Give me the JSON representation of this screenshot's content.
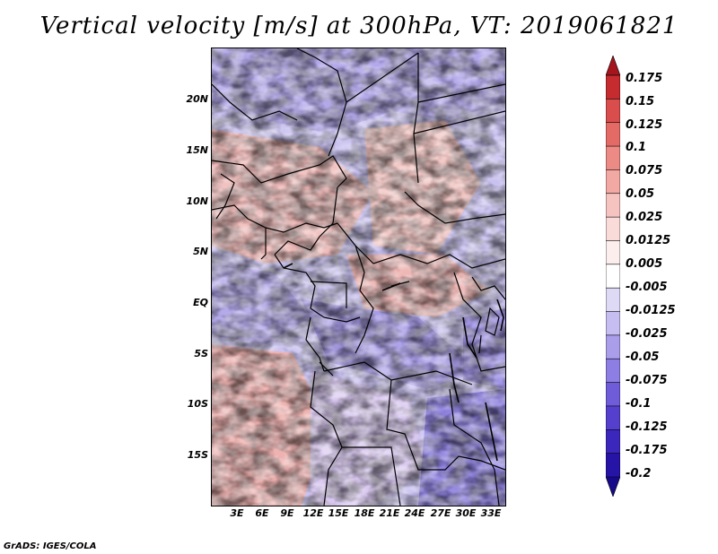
{
  "title": "Vertical velocity [m/s] at 300hPa, VT: 2019061821",
  "credit": "GrADS: IGES/COLA",
  "map": {
    "lat_labels": [
      "20N",
      "15N",
      "10N",
      "5N",
      "EQ",
      "5S",
      "10S",
      "15S"
    ],
    "lon_labels": [
      "3E",
      "6E",
      "9E",
      "12E",
      "15E",
      "18E",
      "21E",
      "24E",
      "27E",
      "30E",
      "33E"
    ]
  },
  "colorbar": {
    "labels": [
      "0.175",
      "0.15",
      "0.125",
      "0.1",
      "0.075",
      "0.05",
      "0.025",
      "0.0125",
      "0.005",
      "-0.005",
      "-0.0125",
      "-0.025",
      "-0.05",
      "-0.075",
      "-0.1",
      "-0.125",
      "-0.175",
      "-0.2"
    ],
    "colors": [
      "#a4151d",
      "#c52b2f",
      "#d94d4d",
      "#e46a66",
      "#ec8a85",
      "#f2a8a3",
      "#f6c4c0",
      "#f9dcda",
      "#fbeeec",
      "#ffffff",
      "#ded9f5",
      "#c6bdf0",
      "#aa9de9",
      "#8c7ee2",
      "#6f5cd9",
      "#5440cd",
      "#3c27bd",
      "#2614a6",
      "#160a8a"
    ]
  }
}
